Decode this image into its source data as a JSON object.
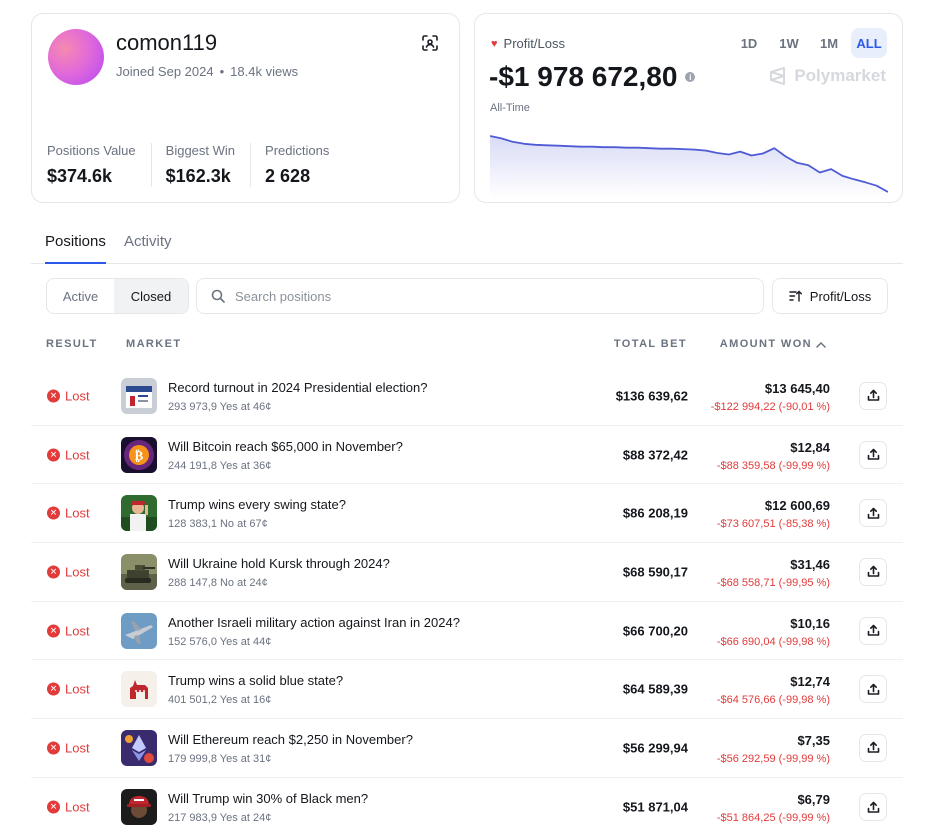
{
  "profile": {
    "username": "comon119",
    "joined": "Joined Sep 2024",
    "views": "18.4k views",
    "stats": [
      {
        "label": "Positions Value",
        "value": "$374.6k"
      },
      {
        "label": "Biggest Win",
        "value": "$162.3k"
      },
      {
        "label": "Predictions",
        "value": "2 628"
      }
    ]
  },
  "pnl": {
    "label": "Profit/Loss",
    "value": "-$1 978 672,80",
    "period_label": "All-Time",
    "ranges": [
      "1D",
      "1W",
      "1M",
      "ALL"
    ],
    "active_range": "ALL",
    "brand": "Polymarket",
    "accent": "#4f5bd5",
    "trend": [
      0,
      -0.5,
      -1.2,
      -1.6,
      -1.8,
      -1.9,
      -2,
      -2.1,
      -2.2,
      -2.2,
      -2.3,
      -2.3,
      -2.4,
      -2.4,
      -2.5,
      -2.6,
      -2.6,
      -2.7,
      -2.8,
      -3.0,
      -3.5,
      -3.8,
      -3.2,
      -4.0,
      -3.6,
      -2.5,
      -4.2,
      -5.5,
      -6.0,
      -7.5,
      -6.8,
      -8.2,
      -8.9,
      -9.5,
      -10.2,
      -11.5
    ]
  },
  "tabs": [
    {
      "label": "Positions",
      "active": true
    },
    {
      "label": "Activity",
      "active": false
    }
  ],
  "filters": {
    "active_label": "Active",
    "closed_label": "Closed",
    "search_placeholder": "Search positions",
    "sort_label": "Profit/Loss"
  },
  "table": {
    "headers": {
      "result": "RESULT",
      "market": "MARKET",
      "total_bet": "TOTAL BET",
      "amount_won": "AMOUNT WON"
    },
    "rows": [
      {
        "result": "Lost",
        "title": "Record turnout in 2024 Presidential election?",
        "sub": "293 973,9 Yes at 46¢",
        "total": "$136 639,62",
        "won": "$13 645,40",
        "delta": "-$122 994,22 (-90,01 %)",
        "thumb": "ballot"
      },
      {
        "result": "Lost",
        "title": "Will Bitcoin reach $65,000 in November?",
        "sub": "244 191,8 Yes at 36¢",
        "total": "$88 372,42",
        "won": "$12,84",
        "delta": "-$88 359,58 (-99,99 %)",
        "thumb": "bitcoin"
      },
      {
        "result": "Lost",
        "title": "Trump wins every swing state?",
        "sub": "128 383,1 No at 67¢",
        "total": "$86 208,19",
        "won": "$12 600,69",
        "delta": "-$73 607,51 (-85,38 %)",
        "thumb": "trump"
      },
      {
        "result": "Lost",
        "title": "Will Ukraine hold Kursk through 2024?",
        "sub": "288 147,8 No at 24¢",
        "total": "$68 590,17",
        "won": "$31,46",
        "delta": "-$68 558,71 (-99,95 %)",
        "thumb": "tank"
      },
      {
        "result": "Lost",
        "title": "Another Israeli military action against Iran in 2024?",
        "sub": "152 576,0 Yes at 44¢",
        "total": "$66 700,20",
        "won": "$10,16",
        "delta": "-$66 690,04 (-99,98 %)",
        "thumb": "jet"
      },
      {
        "result": "Lost",
        "title": "Trump wins a solid blue state?",
        "sub": "401 501,2 Yes at 16¢",
        "total": "$64 589,39",
        "won": "$12,74",
        "delta": "-$64 576,66 (-99,98 %)",
        "thumb": "donkey"
      },
      {
        "result": "Lost",
        "title": "Will Ethereum reach $2,250 in November?",
        "sub": "179 999,8 Yes at 31¢",
        "total": "$56 299,94",
        "won": "$7,35",
        "delta": "-$56 292,59 (-99,99 %)",
        "thumb": "ethereum"
      },
      {
        "result": "Lost",
        "title": "Will Trump win 30% of Black men?",
        "sub": "217 983,9 Yes at 24¢",
        "total": "$51 871,04",
        "won": "$6,79",
        "delta": "-$51 864,25 (-99,99 %)",
        "thumb": "maga-hat"
      }
    ]
  }
}
